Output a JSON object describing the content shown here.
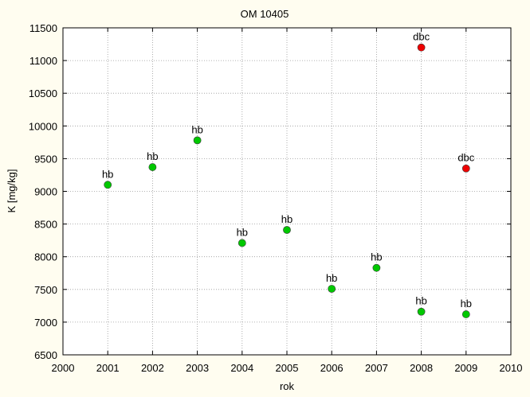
{
  "chart_data": {
    "type": "scatter",
    "title": "OM 10405",
    "xlabel": "rok",
    "ylabel": "K [mg/kg]",
    "xlim": [
      2000,
      2010
    ],
    "ylim": [
      6500,
      11500
    ],
    "x_ticks": [
      2000,
      2001,
      2002,
      2003,
      2004,
      2005,
      2006,
      2007,
      2008,
      2009,
      2010
    ],
    "y_ticks": [
      6500,
      7000,
      7500,
      8000,
      8500,
      9000,
      9500,
      10000,
      10500,
      11000,
      11500
    ],
    "grid": true,
    "colors": {
      "green": "#00c800",
      "red": "#ee0000"
    },
    "points": [
      {
        "x": 2001,
        "y": 9100,
        "label": "hb",
        "color": "#00c800"
      },
      {
        "x": 2002,
        "y": 9370,
        "label": "hb",
        "color": "#00c800"
      },
      {
        "x": 2003,
        "y": 9780,
        "label": "hb",
        "color": "#00c800"
      },
      {
        "x": 2004,
        "y": 8210,
        "label": "hb",
        "color": "#00c800"
      },
      {
        "x": 2005,
        "y": 8410,
        "label": "hb",
        "color": "#00c800"
      },
      {
        "x": 2006,
        "y": 7510,
        "label": "hb",
        "color": "#00c800"
      },
      {
        "x": 2007,
        "y": 7830,
        "label": "hb",
        "color": "#00c800"
      },
      {
        "x": 2008,
        "y": 7160,
        "label": "hb",
        "color": "#00c800"
      },
      {
        "x": 2009,
        "y": 7120,
        "label": "hb",
        "color": "#00c800"
      },
      {
        "x": 2008,
        "y": 11200,
        "label": "dbc",
        "color": "#ee0000"
      },
      {
        "x": 2009,
        "y": 9350,
        "label": "dbc",
        "color": "#ee0000"
      }
    ]
  }
}
